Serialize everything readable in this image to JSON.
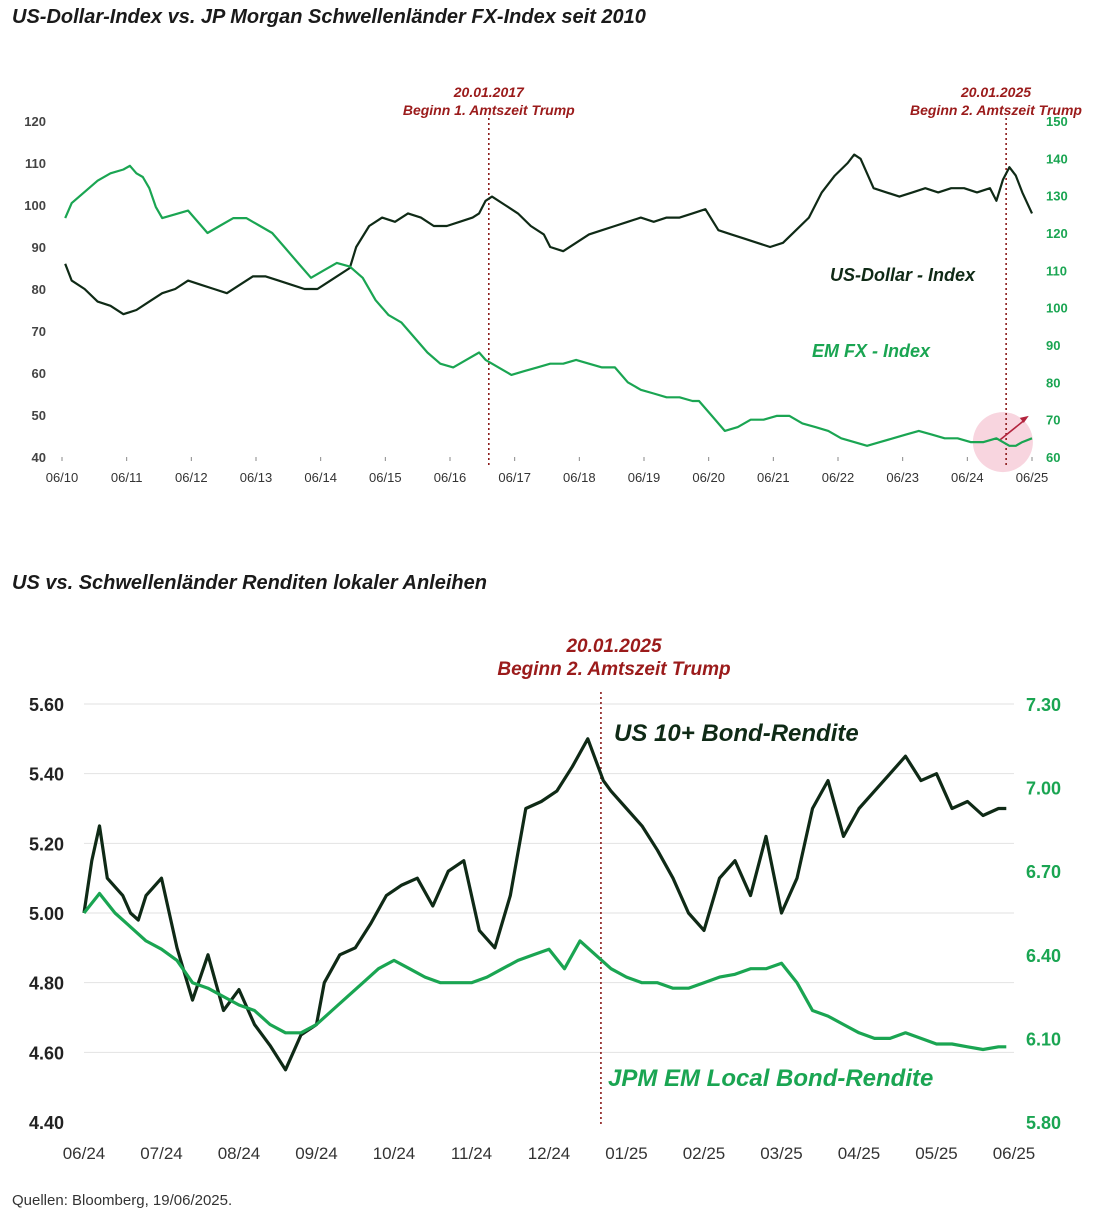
{
  "chart_data": [
    {
      "type": "line",
      "title": "US-Dollar-Index vs. JP Morgan Schwellenländer FX-Index seit 2010",
      "x_ticks": [
        "06/10",
        "06/11",
        "06/12",
        "06/13",
        "06/14",
        "06/15",
        "06/16",
        "06/17",
        "06/18",
        "06/19",
        "06/20",
        "06/21",
        "06/22",
        "06/23",
        "06/24",
        "06/25"
      ],
      "y_left": {
        "min": 40,
        "max": 120,
        "ticks": [
          "120",
          "110",
          "100",
          "90",
          "80",
          "70",
          "60",
          "50",
          "40"
        ]
      },
      "y_right": {
        "min": 60,
        "max": 150,
        "ticks": [
          "150",
          "140",
          "130",
          "120",
          "110",
          "100",
          "90",
          "80",
          "70",
          "60"
        ]
      },
      "series": [
        {
          "name": "US-Dollar - Index",
          "axis": "left",
          "color": "#0f2a16",
          "x": [
            2010.5,
            2010.6,
            2010.8,
            2011.0,
            2011.2,
            2011.4,
            2011.6,
            2011.8,
            2012.0,
            2012.2,
            2012.4,
            2012.6,
            2012.8,
            2013.0,
            2013.2,
            2013.4,
            2013.6,
            2013.8,
            2014.0,
            2014.2,
            2014.4,
            2014.5,
            2014.7,
            2014.9,
            2015.0,
            2015.2,
            2015.4,
            2015.6,
            2015.8,
            2016.0,
            2016.2,
            2016.4,
            2016.6,
            2016.8,
            2016.9,
            2017.0,
            2017.1,
            2017.3,
            2017.5,
            2017.7,
            2017.9,
            2018.0,
            2018.2,
            2018.4,
            2018.6,
            2018.8,
            2019.0,
            2019.2,
            2019.4,
            2019.6,
            2019.8,
            2020.0,
            2020.2,
            2020.4,
            2020.6,
            2020.8,
            2021.0,
            2021.2,
            2021.4,
            2021.6,
            2021.8,
            2022.0,
            2022.2,
            2022.4,
            2022.6,
            2022.7,
            2022.8,
            2023.0,
            2023.2,
            2023.4,
            2023.6,
            2023.8,
            2024.0,
            2024.2,
            2024.4,
            2024.6,
            2024.8,
            2024.9,
            2025.0,
            2025.1,
            2025.2,
            2025.3,
            2025.45
          ],
          "y": [
            86,
            82,
            80,
            77,
            76,
            74,
            75,
            77,
            79,
            80,
            82,
            81,
            80,
            79,
            81,
            83,
            83,
            82,
            81,
            80,
            80,
            81,
            83,
            85,
            90,
            95,
            97,
            96,
            98,
            97,
            95,
            95,
            96,
            97,
            98,
            101,
            102,
            100,
            98,
            95,
            93,
            90,
            89,
            91,
            93,
            94,
            95,
            96,
            97,
            96,
            97,
            97,
            98,
            99,
            94,
            93,
            92,
            91,
            90,
            91,
            94,
            97,
            103,
            107,
            110,
            112,
            111,
            104,
            103,
            102,
            103,
            104,
            103,
            104,
            104,
            103,
            104,
            101,
            106,
            109,
            107,
            103,
            98
          ]
        },
        {
          "name": "EM FX - Index",
          "axis": "right",
          "color": "#1aa552",
          "x": [
            2010.5,
            2010.6,
            2010.8,
            2011.0,
            2011.2,
            2011.4,
            2011.5,
            2011.6,
            2011.7,
            2011.8,
            2011.9,
            2012.0,
            2012.2,
            2012.4,
            2012.5,
            2012.7,
            2012.9,
            2013.1,
            2013.3,
            2013.5,
            2013.7,
            2013.9,
            2014.1,
            2014.3,
            2014.5,
            2014.7,
            2014.9,
            2015.1,
            2015.3,
            2015.5,
            2015.7,
            2015.9,
            2016.1,
            2016.3,
            2016.5,
            2016.7,
            2016.9,
            2017.0,
            2017.2,
            2017.4,
            2017.6,
            2017.8,
            2018.0,
            2018.2,
            2018.4,
            2018.6,
            2018.8,
            2019.0,
            2019.2,
            2019.4,
            2019.6,
            2019.8,
            2020.0,
            2020.2,
            2020.3,
            2020.5,
            2020.7,
            2020.9,
            2021.1,
            2021.3,
            2021.5,
            2021.7,
            2021.9,
            2022.1,
            2022.3,
            2022.5,
            2022.7,
            2022.9,
            2023.1,
            2023.3,
            2023.5,
            2023.7,
            2023.9,
            2024.1,
            2024.3,
            2024.5,
            2024.7,
            2024.9,
            2025.0,
            2025.1,
            2025.2,
            2025.3,
            2025.45
          ],
          "y": [
            124,
            128,
            131,
            134,
            136,
            137,
            138,
            136,
            135,
            132,
            127,
            124,
            125,
            126,
            124,
            120,
            122,
            124,
            124,
            122,
            120,
            116,
            112,
            108,
            110,
            112,
            111,
            108,
            102,
            98,
            96,
            92,
            88,
            85,
            84,
            86,
            88,
            86,
            84,
            82,
            83,
            84,
            85,
            85,
            86,
            85,
            84,
            84,
            80,
            78,
            77,
            76,
            76,
            75,
            75,
            71,
            67,
            68,
            70,
            70,
            71,
            71,
            69,
            68,
            67,
            65,
            64,
            63,
            64,
            65,
            66,
            67,
            66,
            65,
            65,
            64,
            64,
            65,
            64,
            63,
            63,
            64,
            65
          ]
        }
      ],
      "annotations": [
        {
          "date": "20.01.2017",
          "label": "Beginn 1. Amtszeit Trump",
          "x": 2017.05
        },
        {
          "date": "20.01.2025",
          "label": "Beginn 2. Amtszeit Trump",
          "x": 2025.05
        }
      ]
    },
    {
      "type": "line",
      "title": "US vs. Schwellenländer Renditen lokaler Anleihen",
      "x_ticks": [
        "06/24",
        "07/24",
        "08/24",
        "09/24",
        "10/24",
        "11/24",
        "12/24",
        "01/25",
        "02/25",
        "03/25",
        "04/25",
        "05/25",
        "06/25"
      ],
      "y_left": {
        "min": 4.4,
        "max": 5.6,
        "ticks": [
          "5.60",
          "5.40",
          "5.20",
          "5.00",
          "4.80",
          "4.60",
          "4.40"
        ]
      },
      "y_right": {
        "min": 5.8,
        "max": 7.3,
        "ticks": [
          "7.30",
          "7.00",
          "6.70",
          "6.40",
          "6.10",
          "5.80"
        ]
      },
      "series": [
        {
          "name": "US 10+ Bond-Rendite",
          "axis": "left",
          "color": "#0f2a16",
          "x": [
            0.0,
            0.1,
            0.2,
            0.3,
            0.5,
            0.6,
            0.7,
            0.8,
            1.0,
            1.2,
            1.4,
            1.6,
            1.8,
            2.0,
            2.2,
            2.4,
            2.6,
            2.8,
            3.0,
            3.1,
            3.3,
            3.5,
            3.7,
            3.9,
            4.1,
            4.3,
            4.5,
            4.7,
            4.9,
            5.1,
            5.3,
            5.5,
            5.7,
            5.9,
            6.1,
            6.3,
            6.5,
            6.7,
            6.8,
            7.0,
            7.2,
            7.4,
            7.6,
            7.8,
            8.0,
            8.2,
            8.4,
            8.6,
            8.8,
            9.0,
            9.2,
            9.4,
            9.6,
            9.8,
            10.0,
            10.2,
            10.4,
            10.6,
            10.8,
            11.0,
            11.2,
            11.4,
            11.6,
            11.8,
            11.9
          ],
          "y": [
            5.0,
            5.15,
            5.25,
            5.1,
            5.05,
            5.0,
            4.98,
            5.05,
            5.1,
            4.9,
            4.75,
            4.88,
            4.72,
            4.78,
            4.68,
            4.62,
            4.55,
            4.65,
            4.68,
            4.8,
            4.88,
            4.9,
            4.97,
            5.05,
            5.08,
            5.1,
            5.02,
            5.12,
            5.15,
            4.95,
            4.9,
            5.05,
            5.3,
            5.32,
            5.35,
            5.42,
            5.5,
            5.38,
            5.35,
            5.3,
            5.25,
            5.18,
            5.1,
            5.0,
            4.95,
            5.1,
            5.15,
            5.05,
            5.22,
            5.0,
            5.1,
            5.3,
            5.38,
            5.22,
            5.3,
            5.35,
            5.4,
            5.45,
            5.38,
            5.4,
            5.3,
            5.32,
            5.28,
            5.3,
            5.3
          ]
        },
        {
          "name": "JPM EM Local Bond-Rendite",
          "axis": "right",
          "color": "#1aa552",
          "x": [
            0.0,
            0.2,
            0.4,
            0.6,
            0.8,
            1.0,
            1.2,
            1.4,
            1.6,
            1.8,
            2.0,
            2.2,
            2.4,
            2.6,
            2.8,
            3.0,
            3.2,
            3.4,
            3.6,
            3.8,
            4.0,
            4.2,
            4.4,
            4.6,
            4.8,
            5.0,
            5.2,
            5.4,
            5.6,
            5.8,
            6.0,
            6.2,
            6.4,
            6.6,
            6.8,
            7.0,
            7.2,
            7.4,
            7.6,
            7.8,
            8.0,
            8.2,
            8.4,
            8.6,
            8.8,
            9.0,
            9.2,
            9.4,
            9.6,
            9.8,
            10.0,
            10.2,
            10.4,
            10.6,
            10.8,
            11.0,
            11.2,
            11.4,
            11.6,
            11.8,
            11.9
          ],
          "y": [
            6.55,
            6.62,
            6.55,
            6.5,
            6.45,
            6.42,
            6.38,
            6.3,
            6.28,
            6.25,
            6.22,
            6.2,
            6.15,
            6.12,
            6.12,
            6.15,
            6.2,
            6.25,
            6.3,
            6.35,
            6.38,
            6.35,
            6.32,
            6.3,
            6.3,
            6.3,
            6.32,
            6.35,
            6.38,
            6.4,
            6.42,
            6.35,
            6.45,
            6.4,
            6.35,
            6.32,
            6.3,
            6.3,
            6.28,
            6.28,
            6.3,
            6.32,
            6.33,
            6.35,
            6.35,
            6.37,
            6.3,
            6.2,
            6.18,
            6.15,
            6.12,
            6.1,
            6.1,
            6.12,
            6.1,
            6.08,
            6.08,
            6.07,
            6.06,
            6.07,
            6.07
          ]
        }
      ],
      "annotations": [
        {
          "date": "20.01.2025",
          "label": "Beginn 2. Amtszeit Trump",
          "x": 6.67
        }
      ]
    }
  ],
  "source": "Quellen: Bloomberg, 19/06/2025."
}
